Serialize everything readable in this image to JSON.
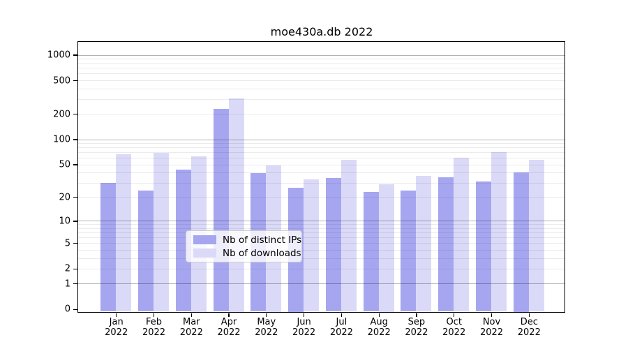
{
  "title": "moe430a.db 2022",
  "colors": {
    "ips": "#a6a6f0",
    "downloads": "#dadaf8",
    "grid_major": "rgba(0,0,0,0.30)",
    "grid_minor": "rgba(0,0,0,0.08)",
    "axis": "#000000",
    "legend_border": "#cccccc"
  },
  "legend": {
    "items": [
      {
        "label": "Nb of distinct IPs",
        "color_key": "ips"
      },
      {
        "label": "Nb of downloads",
        "color_key": "downloads"
      }
    ]
  },
  "y_axis": {
    "tick_labels": [
      "1000",
      "500",
      "200",
      "100",
      "50",
      "20",
      "10",
      "5",
      "2",
      "1",
      "0"
    ],
    "tick_values": [
      1000,
      500,
      200,
      100,
      50,
      20,
      10,
      5,
      2,
      1,
      0
    ]
  },
  "x_axis": {
    "months": [
      "Jan",
      "Feb",
      "Mar",
      "Apr",
      "May",
      "Jun",
      "Jul",
      "Aug",
      "Sep",
      "Oct",
      "Nov",
      "Dec"
    ],
    "year": "2022"
  },
  "chart_data": {
    "type": "bar",
    "title": "moe430a.db 2022",
    "categories": [
      "Jan 2022",
      "Feb 2022",
      "Mar 2022",
      "Apr 2022",
      "May 2022",
      "Jun 2022",
      "Jul 2022",
      "Aug 2022",
      "Sep 2022",
      "Oct 2022",
      "Nov 2022",
      "Dec 2022"
    ],
    "series": [
      {
        "name": "Nb of distinct IPs",
        "values": [
          30,
          24,
          43,
          230,
          39,
          26,
          34,
          23,
          24,
          35,
          31,
          40
        ]
      },
      {
        "name": "Nb of downloads",
        "values": [
          66,
          69,
          63,
          305,
          49,
          33,
          57,
          29,
          36,
          60,
          70,
          57
        ]
      }
    ],
    "xlabel": "",
    "ylabel": "",
    "yscale": "log1p",
    "y_ticks": [
      0,
      1,
      2,
      5,
      10,
      20,
      50,
      100,
      200,
      500,
      1000
    ],
    "ylim": [
      0,
      1400
    ],
    "grid": "major and minor horizontal, drawn over bars",
    "legend_position": "lower center"
  }
}
